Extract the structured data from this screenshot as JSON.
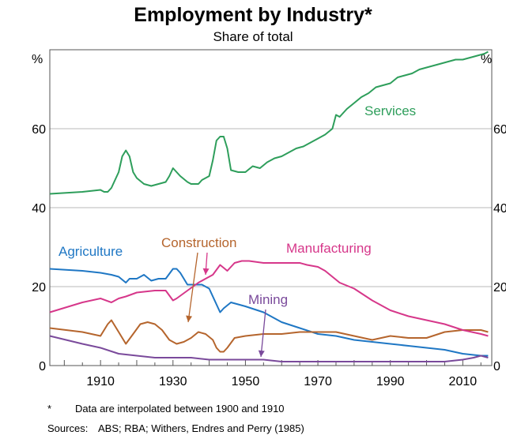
{
  "chart_data": {
    "type": "line",
    "title": "Employment by Industry*",
    "subtitle": "Share of total",
    "ylabel_left": "%",
    "ylabel_right": "%",
    "xlim": [
      1896,
      2018
    ],
    "ylim": [
      0,
      80
    ],
    "yticks": [
      0,
      20,
      40,
      60
    ],
    "xticks": [
      1910,
      1930,
      1950,
      1970,
      1990,
      2010
    ],
    "grid": true,
    "series": [
      {
        "name": "Services",
        "color": "#2e9e5b",
        "x": [
          1896,
          1905,
          1910,
          1911,
          1912,
          1913,
          1915,
          1916,
          1917,
          1918,
          1919,
          1920,
          1922,
          1924,
          1926,
          1928,
          1929,
          1930,
          1931,
          1932,
          1934,
          1935,
          1937,
          1938,
          1940,
          1941,
          1942,
          1943,
          1944,
          1945,
          1946,
          1948,
          1950,
          1952,
          1954,
          1956,
          1958,
          1960,
          1962,
          1964,
          1966,
          1968,
          1970,
          1972,
          1974,
          1975,
          1976,
          1978,
          1980,
          1982,
          1984,
          1986,
          1988,
          1990,
          1992,
          1994,
          1996,
          1998,
          2000,
          2002,
          2004,
          2006,
          2008,
          2010,
          2012,
          2014,
          2016,
          2017
        ],
        "values": [
          43.5,
          44.0,
          44.5,
          44.0,
          44.0,
          45.0,
          49.0,
          53.0,
          54.5,
          53.0,
          49.0,
          47.5,
          46.0,
          45.5,
          46.0,
          46.5,
          48.0,
          50.0,
          49.0,
          48.0,
          46.5,
          46.0,
          46.0,
          47.0,
          48.0,
          52.0,
          57.0,
          58.0,
          58.0,
          55.0,
          49.5,
          49.0,
          49.0,
          50.5,
          50.0,
          51.5,
          52.5,
          53.0,
          54.0,
          55.0,
          55.5,
          56.5,
          57.5,
          58.5,
          60.0,
          63.5,
          63.0,
          65.0,
          66.5,
          68.0,
          69.0,
          70.5,
          71.0,
          71.5,
          73.0,
          73.5,
          74.0,
          75.0,
          75.5,
          76.0,
          76.5,
          77.0,
          77.5,
          77.5,
          78.0,
          78.5,
          79.0,
          79.5
        ]
      },
      {
        "name": "Agriculture",
        "color": "#1f77c4",
        "x": [
          1896,
          1905,
          1910,
          1913,
          1915,
          1917,
          1918,
          1920,
          1922,
          1924,
          1926,
          1928,
          1930,
          1931,
          1932,
          1934,
          1936,
          1938,
          1940,
          1942,
          1943,
          1944,
          1946,
          1948,
          1950,
          1955,
          1960,
          1965,
          1970,
          1975,
          1980,
          1985,
          1990,
          1995,
          2000,
          2005,
          2010,
          2015,
          2017
        ],
        "values": [
          24.5,
          24.0,
          23.5,
          23.0,
          22.5,
          21.0,
          22.0,
          22.0,
          23.0,
          21.5,
          22.0,
          22.0,
          24.5,
          24.5,
          23.5,
          20.5,
          20.5,
          20.5,
          19.5,
          15.5,
          13.5,
          14.5,
          16.0,
          15.5,
          15.0,
          13.5,
          11.0,
          9.5,
          8.0,
          7.5,
          6.5,
          6.0,
          5.5,
          5.0,
          4.5,
          4.0,
          3.0,
          2.5,
          2.5
        ]
      },
      {
        "name": "Construction",
        "color": "#b5652d",
        "x": [
          1896,
          1905,
          1910,
          1912,
          1913,
          1915,
          1917,
          1919,
          1921,
          1923,
          1925,
          1927,
          1929,
          1931,
          1933,
          1935,
          1937,
          1939,
          1941,
          1942,
          1943,
          1944,
          1945,
          1947,
          1950,
          1955,
          1960,
          1965,
          1970,
          1975,
          1980,
          1985,
          1990,
          1995,
          2000,
          2005,
          2010,
          2015,
          2017
        ],
        "values": [
          9.5,
          8.5,
          7.5,
          10.5,
          11.5,
          8.5,
          5.5,
          8.0,
          10.5,
          11.0,
          10.5,
          9.0,
          6.5,
          5.5,
          6.0,
          7.0,
          8.5,
          8.0,
          6.5,
          4.5,
          3.5,
          3.5,
          4.5,
          7.0,
          7.5,
          8.0,
          8.0,
          8.5,
          8.5,
          8.5,
          7.5,
          6.5,
          7.5,
          7.0,
          7.0,
          8.5,
          9.0,
          9.0,
          8.5
        ]
      },
      {
        "name": "Manufacturing",
        "color": "#d6378a",
        "x": [
          1896,
          1905,
          1910,
          1913,
          1915,
          1917,
          1920,
          1925,
          1928,
          1930,
          1931,
          1934,
          1937,
          1939,
          1941,
          1943,
          1945,
          1947,
          1949,
          1951,
          1955,
          1960,
          1965,
          1967,
          1970,
          1972,
          1974,
          1976,
          1980,
          1985,
          1990,
          1995,
          2000,
          2005,
          2010,
          2015,
          2017
        ],
        "values": [
          13.5,
          16.0,
          17.0,
          16.0,
          17.0,
          17.5,
          18.5,
          19.0,
          19.0,
          16.5,
          17.0,
          19.0,
          21.0,
          22.0,
          23.0,
          25.5,
          24.0,
          26.0,
          26.5,
          26.5,
          26.0,
          26.0,
          26.0,
          25.5,
          25.0,
          24.0,
          22.5,
          21.0,
          19.5,
          16.5,
          14.0,
          12.5,
          11.5,
          10.5,
          9.0,
          8.0,
          7.5
        ]
      },
      {
        "name": "Mining",
        "color": "#7a4a9b",
        "x": [
          1896,
          1905,
          1910,
          1915,
          1920,
          1925,
          1930,
          1935,
          1940,
          1945,
          1950,
          1955,
          1960,
          1965,
          1970,
          1975,
          1980,
          1985,
          1990,
          1995,
          2000,
          2005,
          2010,
          2013,
          2015,
          2017
        ],
        "values": [
          7.5,
          5.5,
          4.5,
          3.0,
          2.5,
          2.0,
          2.0,
          2.0,
          1.5,
          1.5,
          1.5,
          1.5,
          1.0,
          1.0,
          1.0,
          1.0,
          1.0,
          1.0,
          1.0,
          1.0,
          1.0,
          1.0,
          1.5,
          2.0,
          2.5,
          2.0
        ]
      }
    ],
    "annotations": [
      {
        "text": "Services",
        "series": "Services"
      },
      {
        "text": "Agriculture",
        "series": "Agriculture"
      },
      {
        "text": "Construction",
        "series": "Construction"
      },
      {
        "text": "Manufacturing",
        "series": "Manufacturing"
      },
      {
        "text": "Mining",
        "series": "Mining"
      }
    ],
    "footnotes": {
      "asterisk": "*",
      "note": "Data are interpolated between 1900 and 1910",
      "sources_label": "Sources:",
      "sources": "ABS; RBA; Withers, Endres and Perry (1985)"
    }
  }
}
